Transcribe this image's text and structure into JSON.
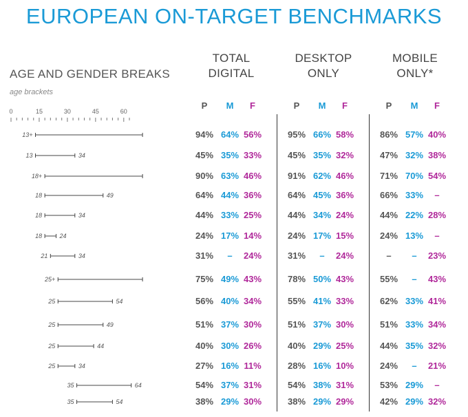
{
  "title": "EUROPEAN ON-TARGET BENCHMARKS",
  "section_title": "AGE AND GENDER BREAKS",
  "age_brackets_label": "age brackets",
  "age_axis_ticks": [
    "0",
    "15",
    "30",
    "45",
    "60"
  ],
  "groups": [
    {
      "line1": "TOTAL",
      "line2": "DIGITAL"
    },
    {
      "line1": "DESKTOP",
      "line2": "ONLY"
    },
    {
      "line1": "MOBILE",
      "line2": "ONLY*"
    }
  ],
  "column_labels": [
    "P",
    "M",
    "F"
  ],
  "colors": {
    "title": "#1a9ad6",
    "P": "#555555",
    "M": "#1a9ad6",
    "F": "#b0289a"
  },
  "chart_data": {
    "type": "table",
    "age_axis_range": [
      0,
      70
    ],
    "rows": [
      {
        "min_label": "13+",
        "max_label": "",
        "min": 13,
        "max": 70,
        "total": [
          "94%",
          "64%",
          "56%"
        ],
        "desktop": [
          "95%",
          "66%",
          "58%"
        ],
        "mobile": [
          "86%",
          "57%",
          "40%"
        ]
      },
      {
        "min_label": "13",
        "max_label": "34",
        "min": 13,
        "max": 34,
        "total": [
          "45%",
          "35%",
          "33%"
        ],
        "desktop": [
          "45%",
          "35%",
          "32%"
        ],
        "mobile": [
          "47%",
          "32%",
          "38%"
        ]
      },
      {
        "min_label": "18+",
        "max_label": "",
        "min": 18,
        "max": 70,
        "total": [
          "90%",
          "63%",
          "46%"
        ],
        "desktop": [
          "91%",
          "62%",
          "46%"
        ],
        "mobile": [
          "71%",
          "70%",
          "54%"
        ]
      },
      {
        "min_label": "18",
        "max_label": "49",
        "min": 18,
        "max": 49,
        "total": [
          "64%",
          "44%",
          "36%"
        ],
        "desktop": [
          "64%",
          "45%",
          "36%"
        ],
        "mobile": [
          "66%",
          "33%",
          "–"
        ]
      },
      {
        "min_label": "18",
        "max_label": "34",
        "min": 18,
        "max": 34,
        "total": [
          "44%",
          "33%",
          "25%"
        ],
        "desktop": [
          "44%",
          "34%",
          "24%"
        ],
        "mobile": [
          "44%",
          "22%",
          "28%"
        ]
      },
      {
        "min_label": "18",
        "max_label": "24",
        "min": 18,
        "max": 24,
        "total": [
          "24%",
          "17%",
          "14%"
        ],
        "desktop": [
          "24%",
          "17%",
          "15%"
        ],
        "mobile": [
          "24%",
          "13%",
          "–"
        ]
      },
      {
        "min_label": "21",
        "max_label": "34",
        "min": 21,
        "max": 34,
        "total": [
          "31%",
          "–",
          "24%"
        ],
        "desktop": [
          "31%",
          "–",
          "24%"
        ],
        "mobile": [
          "–",
          "–",
          "23%"
        ]
      },
      {
        "min_label": "25+",
        "max_label": "",
        "min": 25,
        "max": 70,
        "total": [
          "75%",
          "49%",
          "43%"
        ],
        "desktop": [
          "78%",
          "50%",
          "43%"
        ],
        "mobile": [
          "55%",
          "–",
          "43%"
        ]
      },
      {
        "min_label": "25",
        "max_label": "54",
        "min": 25,
        "max": 54,
        "total": [
          "56%",
          "40%",
          "34%"
        ],
        "desktop": [
          "55%",
          "41%",
          "33%"
        ],
        "mobile": [
          "62%",
          "33%",
          "41%"
        ]
      },
      {
        "min_label": "25",
        "max_label": "49",
        "min": 25,
        "max": 49,
        "total": [
          "51%",
          "37%",
          "30%"
        ],
        "desktop": [
          "51%",
          "37%",
          "30%"
        ],
        "mobile": [
          "51%",
          "33%",
          "34%"
        ]
      },
      {
        "min_label": "25",
        "max_label": "44",
        "min": 25,
        "max": 44,
        "total": [
          "40%",
          "30%",
          "26%"
        ],
        "desktop": [
          "40%",
          "29%",
          "25%"
        ],
        "mobile": [
          "44%",
          "35%",
          "32%"
        ]
      },
      {
        "min_label": "25",
        "max_label": "34",
        "min": 25,
        "max": 34,
        "total": [
          "27%",
          "16%",
          "11%"
        ],
        "desktop": [
          "28%",
          "16%",
          "10%"
        ],
        "mobile": [
          "24%",
          "–",
          "21%"
        ]
      },
      {
        "min_label": "35",
        "max_label": "64",
        "min": 35,
        "max": 64,
        "total": [
          "54%",
          "37%",
          "31%"
        ],
        "desktop": [
          "54%",
          "38%",
          "31%"
        ],
        "mobile": [
          "53%",
          "29%",
          "–"
        ]
      },
      {
        "min_label": "35",
        "max_label": "54",
        "min": 35,
        "max": 54,
        "total": [
          "38%",
          "29%",
          "30%"
        ],
        "desktop": [
          "38%",
          "29%",
          "29%"
        ],
        "mobile": [
          "42%",
          "29%",
          "32%"
        ]
      }
    ]
  }
}
